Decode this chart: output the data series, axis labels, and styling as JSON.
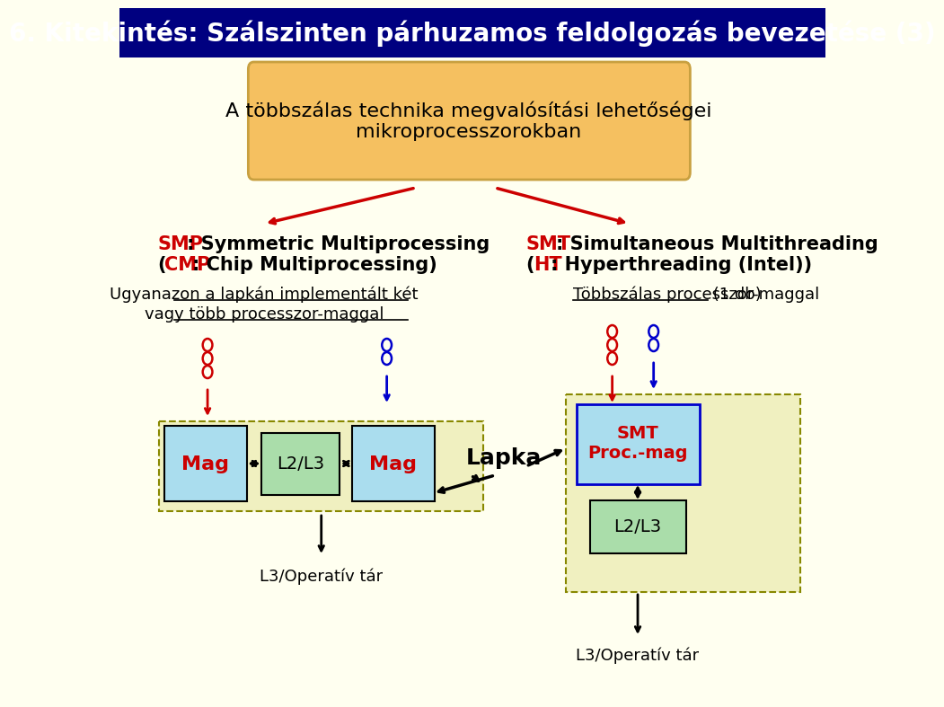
{
  "title": "6. Kitekintés: Szálszinten párhuzamos feldolgozás bevezetése (3)",
  "title_bg": "#000080",
  "title_fg": "#ffffff",
  "bg_color": "#fffff0",
  "top_box_text": "A többszálas technika megvalósítási lehetőségei\nmikroprocesszorokban",
  "top_box_bg": "#f5c060",
  "top_box_border": "#c8a040",
  "smp_label": "SMP",
  "smp_rest": ": Symmetric Multiprocessing",
  "cmp_pre": "(",
  "cmp_label": "CMP",
  "cmp_rest": ": Chip Multiprocessing)",
  "smt_label": "SMT",
  "smt_rest": ": Simultaneous Multithreading",
  "ht_pre": "(",
  "ht_label": "HT",
  "ht_rest": ": Hyperthreading (Intel))",
  "left_desc1": "Ugyanazon a lapkán implementált két",
  "left_desc2": "vagy több processzor-maggal",
  "right_desc_underlined": "Többszálas processzor-maggal",
  "right_desc_rest": " (1 db)",
  "lapka_label": "Lapka",
  "l3_left": "L3/Operatív tár",
  "l3_right": "L3/Operatív tár",
  "mag_label": "Mag",
  "l2l3_label": "L2/L3",
  "smt_box_label": "SMT\nProc.-mag",
  "mag_color": "#aaddee",
  "l2l3_color": "#aaddaa",
  "chip_border": "#888800",
  "chip_bg": "#f0f0c0",
  "smt_box_bg": "#aaddee",
  "smt_box_border": "#0000cc",
  "red": "#cc0000",
  "blue": "#0000cc",
  "black": "#000000"
}
